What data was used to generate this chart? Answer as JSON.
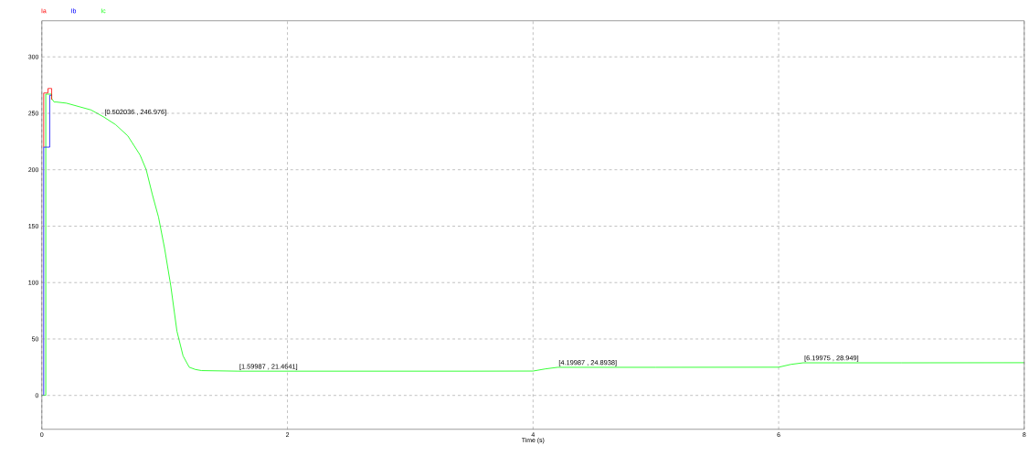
{
  "chart_data": {
    "type": "line",
    "xlabel": "Time (s)",
    "xlim": [
      0,
      8
    ],
    "xticks": [
      0,
      2,
      4,
      6,
      8
    ],
    "ylim": [
      -30,
      332
    ],
    "yticks": [
      0,
      50,
      100,
      150,
      200,
      250,
      300
    ],
    "grid": true,
    "legend": "top left",
    "series": [
      {
        "name": "Ia",
        "color": "#ff0000",
        "x": [
          0.015,
          0.015,
          0.05,
          0.05,
          0.08,
          0.08
        ],
        "values": [
          220,
          268,
          268,
          272,
          272,
          262
        ]
      },
      {
        "name": "Ib",
        "color": "#0000ff",
        "x": [
          0.015,
          0.015,
          0.064,
          0.064,
          0.08
        ],
        "values": [
          0,
          220,
          220,
          266,
          266
        ]
      },
      {
        "name": "Ic",
        "color": "#00ff00",
        "x": [
          0,
          0.032,
          0.032,
          0.08,
          0.08,
          0.1,
          0.12,
          0.2,
          0.3,
          0.4,
          0.5,
          0.6,
          0.7,
          0.8,
          0.85,
          0.9,
          0.95,
          1.0,
          1.05,
          1.1,
          1.15,
          1.2,
          1.25,
          1.3,
          1.6,
          2.5,
          3.5,
          4.0,
          4.1,
          4.2,
          5,
          6.0,
          6.1,
          6.2,
          7,
          8
        ],
        "values": [
          0,
          0,
          267,
          267,
          263,
          260,
          260,
          259,
          256,
          253,
          247,
          240,
          230,
          213,
          200,
          178,
          158,
          130,
          97,
          57,
          35,
          25,
          23,
          22,
          21.5,
          21.5,
          21.5,
          21.6,
          23.5,
          24.9,
          24.9,
          25,
          27.5,
          28.9,
          28.9,
          29
        ]
      }
    ],
    "annotations": [
      {
        "text": "[0.502036 , 246.976]",
        "x": 0.502036,
        "y": 246.976
      },
      {
        "text": "[1.59987 , 21.4641]",
        "x": 1.59987,
        "y": 21.4641
      },
      {
        "text": "[4.19987 , 24.8938]",
        "x": 4.19987,
        "y": 24.8938
      },
      {
        "text": "[6.19975 , 28.949]",
        "x": 6.19975,
        "y": 28.949
      }
    ]
  }
}
